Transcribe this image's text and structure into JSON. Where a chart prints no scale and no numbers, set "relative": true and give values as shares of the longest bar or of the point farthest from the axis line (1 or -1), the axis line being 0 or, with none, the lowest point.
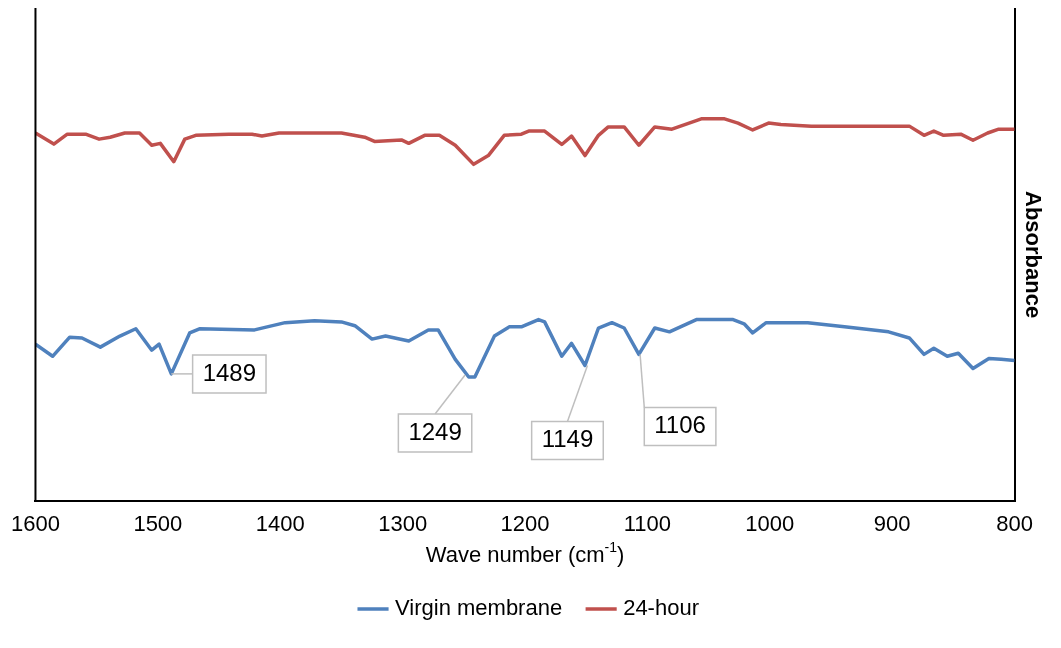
{
  "chart_data": {
    "type": "line",
    "relative": true,
    "xlabel": "Wave number (cm$^{-1}$)",
    "ylabel": "Absorbance",
    "xlim": [
      1600,
      800
    ],
    "xticks": [
      1600,
      1500,
      1400,
      1300,
      1200,
      1100,
      1000,
      900,
      800
    ],
    "legend": "bottom",
    "marker": "none",
    "line_style": "solid",
    "grid": false,
    "annotations": [
      {
        "text": "1489",
        "x": 1489,
        "y": 0.333
      },
      {
        "text": "1249",
        "x": 1249,
        "y": 0.33
      },
      {
        "text": "1149",
        "x": 1149,
        "y": 0.355
      },
      {
        "text": "1106",
        "x": 1106,
        "y": 0.384
      }
    ],
    "series": [
      {
        "name": "Virgin membrane",
        "color": "#4f81bd",
        "x": [
          1600,
          1586,
          1572,
          1562,
          1547,
          1531,
          1518,
          1505,
          1499,
          1489,
          1474,
          1466,
          1421,
          1396,
          1372,
          1350,
          1339,
          1325,
          1314,
          1295,
          1279,
          1271,
          1257,
          1246,
          1241,
          1225,
          1213,
          1203,
          1189,
          1184,
          1170,
          1162,
          1151,
          1140,
          1129,
          1119,
          1107,
          1094,
          1082,
          1060,
          1030,
          1021,
          1014,
          1003,
          969,
          939,
          903,
          886,
          874,
          866,
          855,
          846,
          834,
          821,
          811,
          800
        ],
        "values": [
          0.411,
          0.379,
          0.429,
          0.427,
          0.403,
          0.432,
          0.451,
          0.395,
          0.411,
          0.333,
          0.44,
          0.451,
          0.448,
          0.467,
          0.472,
          0.469,
          0.459,
          0.424,
          0.432,
          0.419,
          0.448,
          0.448,
          0.371,
          0.325,
          0.325,
          0.432,
          0.456,
          0.456,
          0.475,
          0.469,
          0.379,
          0.413,
          0.355,
          0.453,
          0.467,
          0.453,
          0.384,
          0.453,
          0.443,
          0.475,
          0.475,
          0.464,
          0.44,
          0.467,
          0.467,
          0.456,
          0.443,
          0.427,
          0.384,
          0.4,
          0.379,
          0.387,
          0.347,
          0.373,
          0.371,
          0.368
        ]
      },
      {
        "name": "24-hour",
        "color": "#c0504d",
        "x": [
          1600,
          1585,
          1574,
          1559,
          1548,
          1539,
          1527,
          1515,
          1505,
          1498,
          1487,
          1478,
          1469,
          1442,
          1423,
          1415,
          1401,
          1350,
          1331,
          1323,
          1301,
          1295,
          1282,
          1270,
          1257,
          1242,
          1230,
          1217,
          1203,
          1197,
          1184,
          1170,
          1162,
          1151,
          1140,
          1132,
          1119,
          1107,
          1094,
          1080,
          1056,
          1037,
          1026,
          1014,
          1001,
          991,
          966,
          886,
          874,
          866,
          858,
          844,
          834,
          822,
          813,
          800
        ],
        "values": [
          0.963,
          0.934,
          0.96,
          0.96,
          0.947,
          0.952,
          0.963,
          0.963,
          0.931,
          0.936,
          0.888,
          0.947,
          0.957,
          0.96,
          0.96,
          0.955,
          0.963,
          0.963,
          0.952,
          0.941,
          0.945,
          0.936,
          0.957,
          0.957,
          0.931,
          0.881,
          0.904,
          0.957,
          0.96,
          0.968,
          0.968,
          0.933,
          0.955,
          0.904,
          0.957,
          0.979,
          0.979,
          0.931,
          0.979,
          0.973,
          1,
          1,
          0.989,
          0.971,
          0.989,
          0.985,
          0.981,
          0.981,
          0.957,
          0.968,
          0.957,
          0.96,
          0.944,
          0.963,
          0.973,
          0.973
        ]
      }
    ]
  }
}
